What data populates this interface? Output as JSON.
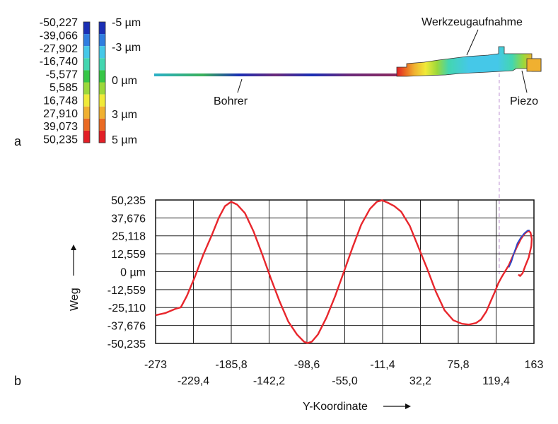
{
  "panel_a": {
    "label": "a",
    "legend_left": [
      "-50,227",
      "-39,066",
      "-27,902",
      "-16,740",
      "-5,577",
      "5,585",
      "16,748",
      "27,910",
      "39,073",
      "50,235"
    ],
    "legend_right": [
      "-5 µm",
      "-3 µm",
      "0 µm",
      "3 µm",
      "5 µm"
    ],
    "legend_colors": [
      "#1a2fb5",
      "#2f7de0",
      "#45c8e8",
      "#43d6b0",
      "#37c646",
      "#9bd83a",
      "#f0ea38",
      "#f0b030",
      "#ea6a22",
      "#e21f26"
    ],
    "annotations": [
      "Werkzeugaufnahme",
      "Bohrer",
      "Piezo"
    ]
  },
  "panel_b": {
    "label": "b"
  },
  "chart_data": {
    "type": "line",
    "title": "",
    "xlabel": "Y-Koordinate",
    "ylabel": "Weg",
    "xlim": [
      -273,
      163
    ],
    "ylim": [
      -50.235,
      50.235
    ],
    "x_ticks": [
      "-273",
      "-229,4",
      "-185,8",
      "-142,2",
      "-98,6",
      "-55,0",
      "-11,4",
      "32,2",
      "75,8",
      "119,4",
      "163"
    ],
    "x_tick_values": [
      -273,
      -229.4,
      -185.8,
      -142.2,
      -98.6,
      -55.0,
      -11.4,
      32.2,
      75.8,
      119.4,
      163
    ],
    "y_ticks": [
      "50,235",
      "37,676",
      "25,118",
      "12,559",
      "0 µm",
      "-12,559",
      "-25,110",
      "-37,676",
      "-50,235"
    ],
    "y_tick_values": [
      50.235,
      37.676,
      25.118,
      12.559,
      0,
      -12.559,
      -25.11,
      -37.676,
      -50.235
    ],
    "grid": true,
    "series": [
      {
        "color": "#e8262c",
        "x": [
          -273,
          -262,
          -250,
          -244,
          -237,
          -228,
          -218,
          -208,
          -200,
          -193,
          -186,
          -179,
          -170,
          -160,
          -150,
          -140,
          -130,
          -120,
          -110,
          -102,
          -98,
          -93,
          -86,
          -76,
          -66,
          -56,
          -46,
          -36,
          -26,
          -18,
          -12,
          -6,
          2,
          10,
          20,
          30,
          40,
          50,
          60,
          70,
          80,
          88,
          96,
          102,
          108,
          113,
          118,
          122,
          126,
          130,
          134,
          138,
          143,
          148,
          152,
          155,
          157,
          159,
          160.5,
          160,
          157,
          153,
          150,
          147,
          145
        ],
        "y": [
          -30.5,
          -29,
          -26,
          -25,
          -17,
          -4,
          12,
          26,
          38,
          46,
          49,
          47,
          41,
          28,
          12,
          -5,
          -21,
          -35,
          -44,
          -49,
          -50,
          -49,
          -44,
          -32,
          -17,
          0,
          17,
          33,
          44,
          49,
          50,
          48.5,
          46,
          42,
          32,
          17,
          2,
          -14,
          -27,
          -34,
          -36.5,
          -37,
          -36,
          -33.5,
          -28,
          -21,
          -14,
          -8,
          -3.5,
          0.5,
          4.5,
          10,
          17,
          23,
          26.5,
          28,
          28.5,
          27.5,
          23,
          18,
          10,
          4,
          -1,
          -3,
          -2
        ]
      },
      {
        "color": "#2c48c8",
        "x": [
          134,
          137,
          140,
          144,
          148,
          152,
          156,
          158
        ],
        "y": [
          3,
          7,
          13,
          20,
          24,
          27,
          29,
          29
        ]
      }
    ],
    "marker_line_x": 123
  }
}
